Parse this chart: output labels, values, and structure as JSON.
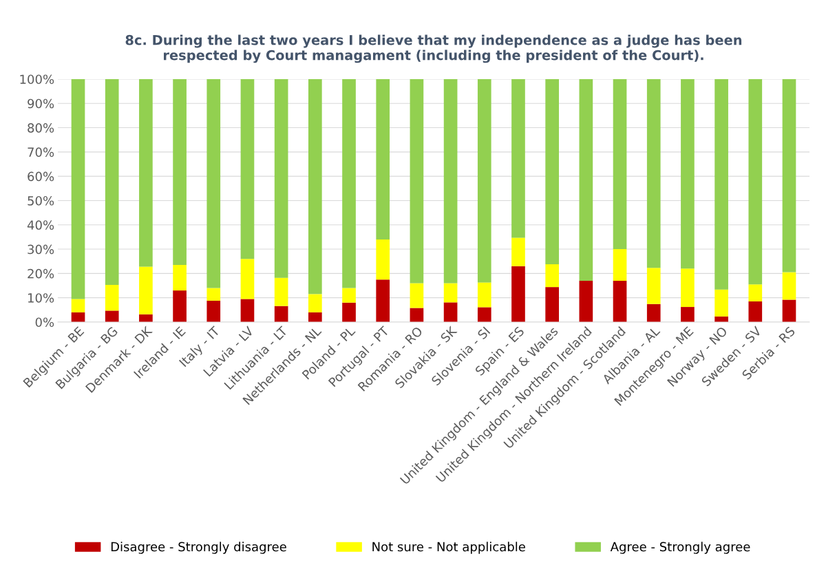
{
  "chart_data": {
    "type": "bar",
    "stacked": true,
    "title": "8c. During the last two years I believe that my independence as a judge has been\nrespected by Court managament (including the president of the Court).",
    "categories": [
      "Belgium - BE",
      "Bulgaria - BG",
      "Denmark - DK",
      "Ireland - IE",
      "Italy - IT",
      "Latvia - LV",
      "Lithuania - LT",
      "Netherlands - NL",
      "Poland - PL",
      "Portugal - PT",
      "Romania - RO",
      "Slovakia - SK",
      "Slovenia - SI",
      "Spain - ES",
      "United Kingdom - England & Wales",
      "United Kingdom - Northern Ireland",
      "United Kingdom - Scotland",
      "Albania - AL",
      "Montenegro - ME",
      "Norway - NO",
      "Sweden - SV",
      "Serbia - RS"
    ],
    "series": [
      {
        "name": "Disagree - Strongly disagree",
        "color": "#c00000",
        "values": [
          4,
          4.7,
          3.2,
          13,
          8.8,
          9.5,
          6.6,
          4,
          8,
          17.5,
          5.8,
          8.1,
          6.1,
          23,
          14.4,
          17,
          17,
          7.4,
          6.2,
          2.3,
          8.5,
          9.2
        ]
      },
      {
        "name": "Not sure - Not applicable",
        "color": "#ffff00",
        "values": [
          5.5,
          10.6,
          19.6,
          10.5,
          5.2,
          16.5,
          11.6,
          7.5,
          6,
          16.5,
          10.2,
          7.9,
          10.2,
          11.7,
          9.4,
          0,
          13,
          14.9,
          15.8,
          11.1,
          7,
          11.3
        ]
      },
      {
        "name": "Agree - Strongly agree",
        "color": "#92d050",
        "values": [
          90.5,
          84.7,
          77.2,
          76.5,
          86,
          74,
          81.8,
          88.5,
          86,
          66,
          84,
          84,
          83.7,
          65.3,
          76.2,
          83,
          70,
          77.7,
          78,
          86.6,
          84.5,
          79.5
        ]
      }
    ],
    "ylim": [
      0,
      100
    ],
    "yticks": [
      {
        "value": 0,
        "label": "0%"
      },
      {
        "value": 10,
        "label": "10%"
      },
      {
        "value": 20,
        "label": "20%"
      },
      {
        "value": 30,
        "label": "30%"
      },
      {
        "value": 40,
        "label": "40%"
      },
      {
        "value": 50,
        "label": "50%"
      },
      {
        "value": 60,
        "label": "60%"
      },
      {
        "value": 70,
        "label": "70%"
      },
      {
        "value": 80,
        "label": "80%"
      },
      {
        "value": 90,
        "label": "90%"
      },
      {
        "value": 100,
        "label": "100%"
      }
    ],
    "grid": "y",
    "legend": "bottom"
  }
}
